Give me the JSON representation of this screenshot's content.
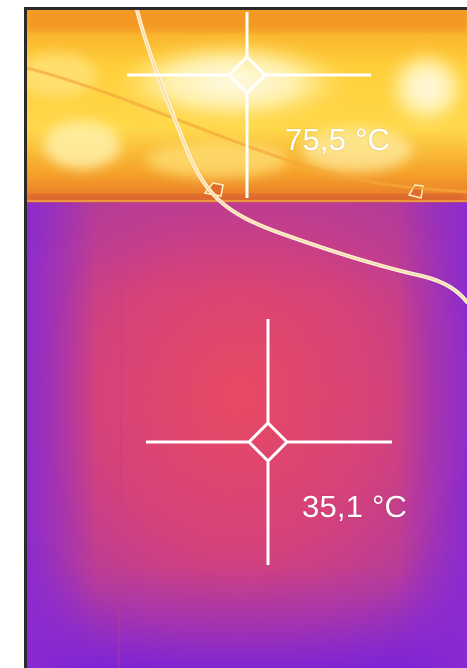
{
  "image": {
    "type": "thermal-camera-capture",
    "palette": "iron",
    "colors": {
      "hot_white": "#fff6c8",
      "hot_yellow": "#ffd23c",
      "warm_orange": "#f79a23",
      "mid_red": "#e0466a",
      "mid_magenta": "#c8408c",
      "cool_purple": "#8a2ad0",
      "frame_border": "#2a2a2a",
      "crosshair": "#ffffff"
    }
  },
  "measurements": [
    {
      "label": "75,5 °C",
      "value": 75.5,
      "unit": "°C"
    },
    {
      "label": "35,1 °C",
      "value": 35.1,
      "unit": "°C"
    }
  ]
}
